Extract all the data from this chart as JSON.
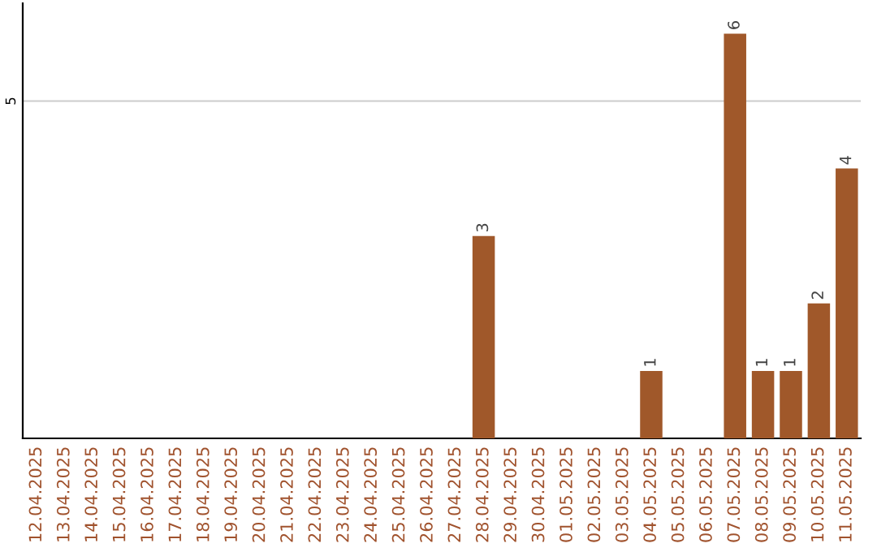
{
  "chart_data": {
    "type": "bar",
    "categories": [
      "12.04.2025",
      "13.04.2025",
      "14.04.2025",
      "15.04.2025",
      "16.04.2025",
      "17.04.2025",
      "18.04.2025",
      "19.04.2025",
      "20.04.2025",
      "21.04.2025",
      "22.04.2025",
      "23.04.2025",
      "24.04.2025",
      "25.04.2025",
      "26.04.2025",
      "27.04.2025",
      "28.04.2025",
      "29.04.2025",
      "30.04.2025",
      "01.05.2025",
      "02.05.2025",
      "03.05.2025",
      "04.05.2025",
      "05.05.2025",
      "06.05.2025",
      "07.05.2025",
      "08.05.2025",
      "09.05.2025",
      "10.05.2025",
      "11.05.2025"
    ],
    "values": [
      null,
      null,
      null,
      null,
      null,
      null,
      null,
      null,
      null,
      null,
      null,
      null,
      null,
      null,
      null,
      null,
      3,
      null,
      null,
      null,
      null,
      null,
      1,
      null,
      null,
      6,
      1,
      1,
      2,
      4
    ],
    "data_labels": true,
    "color": "#a0582a",
    "ylim": [
      0,
      6.45
    ],
    "yticks": [
      5
    ],
    "grid": "y",
    "legend": false
  }
}
